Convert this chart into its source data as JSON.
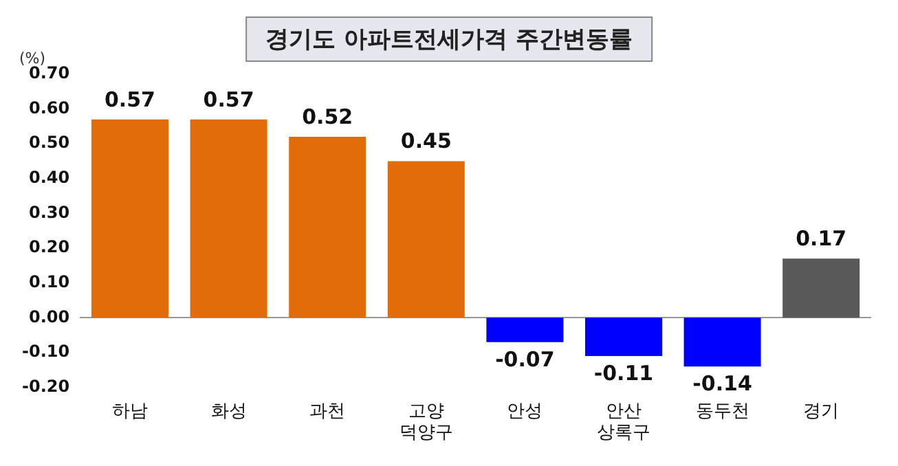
{
  "chart_data": {
    "type": "bar",
    "title": "경기도 아파트전세가격 주간변동률",
    "ylabel": "(%)",
    "categories": [
      "하남",
      "화성",
      "과천",
      "고양 덕양구",
      "안성",
      "안산 상록구",
      "동두천",
      "경기"
    ],
    "values": [
      0.57,
      0.57,
      0.52,
      0.45,
      -0.07,
      -0.11,
      -0.14,
      0.17
    ],
    "colors": [
      "#e36c0a",
      "#e36c0a",
      "#e36c0a",
      "#e36c0a",
      "#0000ff",
      "#0000ff",
      "#0000ff",
      "#595959"
    ],
    "ylim": [
      -0.2,
      0.7
    ],
    "yticks": [
      {
        "value": -0.2,
        "label": "-0.20"
      },
      {
        "value": -0.1,
        "label": "-0.10"
      },
      {
        "value": 0,
        "label": "0.00"
      },
      {
        "value": 0.1,
        "label": "0.10"
      },
      {
        "value": 0.2,
        "label": "0.20"
      },
      {
        "value": 0.3,
        "label": "0.30"
      },
      {
        "value": 0.4,
        "label": "0.40"
      },
      {
        "value": 0.5,
        "label": "0.50"
      },
      {
        "value": 0.6,
        "label": "0.60"
      },
      {
        "value": 0.7,
        "label": "0.70"
      }
    ],
    "data_labels": true,
    "legend": false
  }
}
